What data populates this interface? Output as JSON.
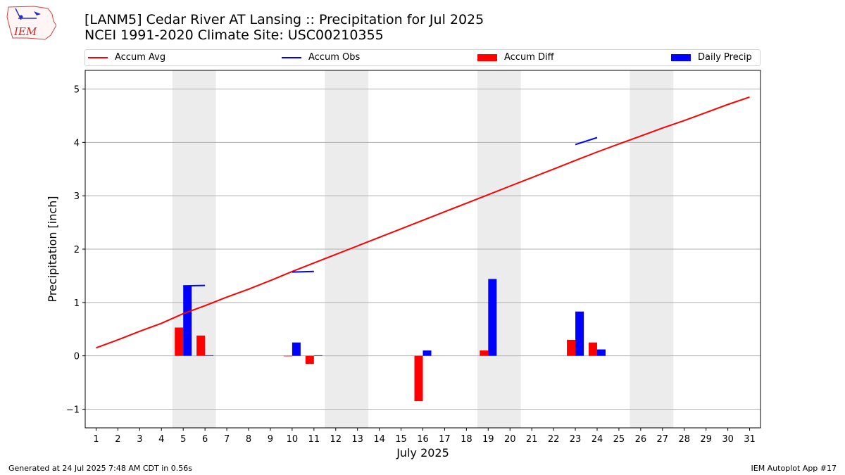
{
  "header": {
    "title_line1": "[LANM5] Cedar River  AT Lansing :: Precipitation for Jul 2025",
    "title_line2": "NCEI 1991-2020 Climate Site: USC00210355",
    "logo_text": "IEM"
  },
  "footer": {
    "left": "Generated at 24 Jul 2025 7:48 AM CDT in 0.56s",
    "right": "IEM Autoplot App #17"
  },
  "legend": {
    "items": [
      {
        "label": "Accum Avg",
        "kind": "line",
        "color": "#ff0000"
      },
      {
        "label": "Accum Obs",
        "kind": "line",
        "color": "#0000ff"
      },
      {
        "label": "Accum Diff",
        "kind": "bar",
        "color": "#ff0000"
      },
      {
        "label": "Daily Precip",
        "kind": "bar",
        "color": "#0000ff"
      }
    ],
    "placement": "top"
  },
  "chart_data": {
    "type": "bar",
    "xlabel": "July 2025",
    "ylabel": "Precipitation [inch]",
    "xlim": [
      0.5,
      31.5
    ],
    "ylim": [
      -1.35,
      5.35
    ],
    "yticks": [
      -1,
      0,
      1,
      2,
      3,
      4,
      5
    ],
    "ytick_labels": [
      "−1",
      "0",
      "1",
      "2",
      "3",
      "4",
      "5"
    ],
    "days": [
      1,
      2,
      3,
      4,
      5,
      6,
      7,
      8,
      9,
      10,
      11,
      12,
      13,
      14,
      15,
      16,
      17,
      18,
      19,
      20,
      21,
      22,
      23,
      24,
      25,
      26,
      27,
      28,
      29,
      30,
      31
    ],
    "grid": "horizontal",
    "weekend_shading": [
      [
        4.5,
        6.5
      ],
      [
        11.5,
        13.5
      ],
      [
        18.5,
        20.5
      ],
      [
        25.5,
        27.5
      ]
    ],
    "accum_avg": [
      0.15,
      0.3,
      0.46,
      0.61,
      0.79,
      0.94,
      1.1,
      1.25,
      1.41,
      1.58,
      1.74,
      1.9,
      2.06,
      2.22,
      2.38,
      2.54,
      2.7,
      2.86,
      3.02,
      3.18,
      3.34,
      3.5,
      3.66,
      3.82,
      3.97,
      4.12,
      4.27,
      4.41,
      4.56,
      4.71,
      4.85
    ],
    "accum_obs_segments": [
      {
        "x": [
          5,
          6
        ],
        "y": [
          1.31,
          1.32
        ]
      },
      {
        "x": [
          10,
          11
        ],
        "y": [
          1.57,
          1.58
        ]
      },
      {
        "x": [
          23,
          24
        ],
        "y": [
          3.96,
          4.09
        ]
      }
    ],
    "accum_diff": [
      {
        "day": 5,
        "value": 0.53
      },
      {
        "day": 6,
        "value": 0.38
      },
      {
        "day": 10,
        "value": -0.01
      },
      {
        "day": 11,
        "value": -0.15
      },
      {
        "day": 16,
        "value": -0.85
      },
      {
        "day": 19,
        "value": 0.1
      },
      {
        "day": 23,
        "value": 0.3
      },
      {
        "day": 24,
        "value": 0.25
      }
    ],
    "daily_precip": [
      {
        "day": 5,
        "value": 1.31
      },
      {
        "day": 6,
        "value": 0.01
      },
      {
        "day": 10,
        "value": 0.25
      },
      {
        "day": 11,
        "value": 0.01
      },
      {
        "day": 16,
        "value": 0.1
      },
      {
        "day": 19,
        "value": 1.44
      },
      {
        "day": 23,
        "value": 0.83
      },
      {
        "day": 24,
        "value": 0.12
      }
    ],
    "colors": {
      "avg": "#ff0000",
      "obs": "#0000ff",
      "diff": "#ff0000",
      "daily": "#0000ff",
      "weekend": "#ececec",
      "grid": "#b0b0b0"
    }
  }
}
